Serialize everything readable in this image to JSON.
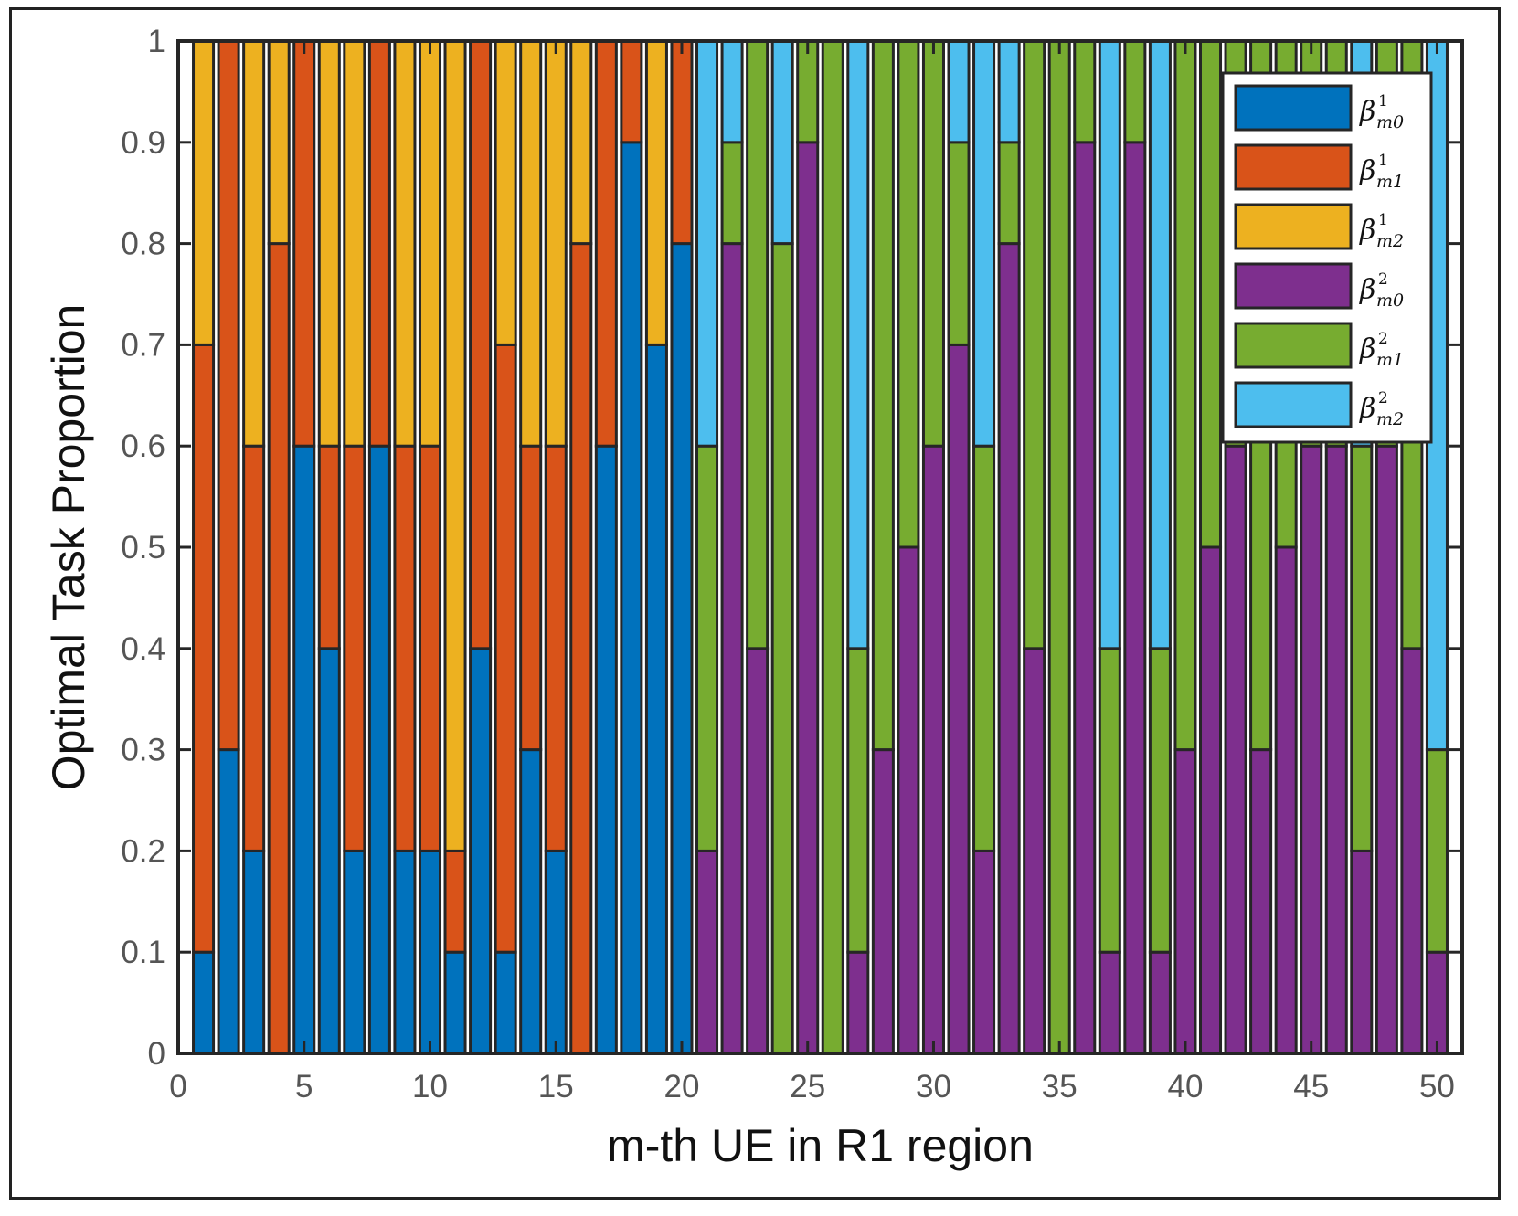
{
  "chart_data": {
    "type": "bar",
    "stacked": true,
    "xlabel": "m-th UE in R1 region",
    "ylabel": "Optimal Task Proportion",
    "xlim": [
      0,
      51
    ],
    "ylim": [
      0,
      1
    ],
    "xticks": [
      0,
      5,
      10,
      15,
      20,
      25,
      30,
      35,
      40,
      45,
      50
    ],
    "yticks": [
      0,
      0.1,
      0.2,
      0.3,
      0.4,
      0.5,
      0.6,
      0.7,
      0.8,
      0.9,
      1
    ],
    "ytick_labels": [
      "0",
      "0.1",
      "0.2",
      "0.3",
      "0.4",
      "0.5",
      "0.6",
      "0.7",
      "0.8",
      "0.9",
      "1"
    ],
    "legend_position": "top-right",
    "x": [
      1,
      2,
      3,
      4,
      5,
      6,
      7,
      8,
      9,
      10,
      11,
      12,
      13,
      14,
      15,
      16,
      17,
      18,
      19,
      20,
      21,
      22,
      23,
      24,
      25,
      26,
      27,
      28,
      29,
      30,
      31,
      32,
      33,
      34,
      35,
      36,
      37,
      38,
      39,
      40,
      41,
      42,
      43,
      44,
      45,
      46,
      47,
      48,
      49,
      50
    ],
    "series": [
      {
        "name": "β¹m0",
        "color": "#0072BD",
        "values": [
          0.1,
          0.3,
          0.2,
          0,
          0.6,
          0.4,
          0.2,
          0.6,
          0.2,
          0.2,
          0.1,
          0.4,
          0.1,
          0.3,
          0.2,
          0,
          0.6,
          0.9,
          0.7,
          0.8,
          0,
          0,
          0,
          0,
          0,
          0,
          0,
          0,
          0,
          0,
          0,
          0,
          0,
          0,
          0,
          0,
          0,
          0,
          0,
          0,
          0,
          0,
          0,
          0,
          0,
          0,
          0,
          0,
          0,
          0
        ]
      },
      {
        "name": "β¹m1",
        "color": "#D95319",
        "values": [
          0.6,
          0.7,
          0.4,
          0.8,
          0.4,
          0.2,
          0.4,
          0.4,
          0.4,
          0.4,
          0.1,
          0.6,
          0.6,
          0.3,
          0.4,
          0.8,
          0.4,
          0.1,
          0,
          0.2,
          0,
          0,
          0,
          0,
          0,
          0,
          0,
          0,
          0,
          0,
          0,
          0,
          0,
          0,
          0,
          0,
          0,
          0,
          0,
          0,
          0,
          0,
          0,
          0,
          0,
          0,
          0,
          0,
          0,
          0
        ]
      },
      {
        "name": "β¹m2",
        "color": "#EDB120",
        "values": [
          0.3,
          0,
          0.4,
          0.2,
          0,
          0.4,
          0.4,
          0,
          0.4,
          0.4,
          0.8,
          0,
          0.3,
          0.4,
          0.4,
          0.2,
          0,
          0,
          0.3,
          0,
          0,
          0,
          0,
          0,
          0,
          0,
          0,
          0,
          0,
          0,
          0,
          0,
          0,
          0,
          0,
          0,
          0,
          0,
          0,
          0,
          0,
          0,
          0,
          0,
          0,
          0,
          0,
          0,
          0,
          0
        ]
      },
      {
        "name": "β²m0",
        "color": "#7E2F8E",
        "values": [
          0,
          0,
          0,
          0,
          0,
          0,
          0,
          0,
          0,
          0,
          0,
          0,
          0,
          0,
          0,
          0,
          0,
          0,
          0,
          0,
          0.2,
          0.8,
          0.4,
          0,
          0.9,
          0,
          0.1,
          0.3,
          0.5,
          0.6,
          0.7,
          0.2,
          0.8,
          0.4,
          0,
          0.9,
          0.1,
          0.9,
          0.1,
          0.3,
          0.5,
          0.6,
          0.3,
          0.5,
          0.6,
          0.6,
          0.2,
          0.6,
          0.4,
          0.1
        ]
      },
      {
        "name": "β²m1",
        "color": "#77AC30",
        "values": [
          0,
          0,
          0,
          0,
          0,
          0,
          0,
          0,
          0,
          0,
          0,
          0,
          0,
          0,
          0,
          0,
          0,
          0,
          0,
          0,
          0.4,
          0.1,
          0.6,
          0.8,
          0.1,
          1,
          0.3,
          0.7,
          0.5,
          0.4,
          0.2,
          0.4,
          0.1,
          0.6,
          1,
          0.1,
          0.3,
          0.1,
          0.3,
          0.7,
          0.5,
          0.4,
          0.7,
          0.5,
          0.4,
          0.4,
          0.4,
          0.4,
          0.6,
          0.2
        ]
      },
      {
        "name": "β²m2",
        "color": "#4DBEEE",
        "values": [
          0,
          0,
          0,
          0,
          0,
          0,
          0,
          0,
          0,
          0,
          0,
          0,
          0,
          0,
          0,
          0,
          0,
          0,
          0,
          0,
          0.4,
          0.1,
          0,
          0.2,
          0,
          0,
          0.6,
          0,
          0,
          0,
          0.1,
          0.4,
          0.1,
          0,
          0,
          0,
          0.6,
          0,
          0.6,
          0,
          0,
          0,
          0,
          0,
          0,
          0,
          0.4,
          0,
          0,
          0.7
        ]
      }
    ]
  },
  "legend": [
    {
      "base": "β",
      "sup": "1",
      "sub": "m0"
    },
    {
      "base": "β",
      "sup": "1",
      "sub": "m1"
    },
    {
      "base": "β",
      "sup": "1",
      "sub": "m2"
    },
    {
      "base": "β",
      "sup": "2",
      "sub": "m0"
    },
    {
      "base": "β",
      "sup": "2",
      "sub": "m1"
    },
    {
      "base": "β",
      "sup": "2",
      "sub": "m2"
    }
  ]
}
